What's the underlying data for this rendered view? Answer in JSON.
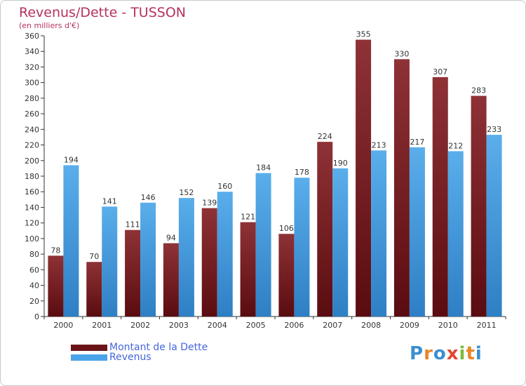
{
  "title": "Revenus/Dette - TUSSON",
  "subtitle": "(en milliers d'€)",
  "logo": {
    "text": "Proxiti",
    "colors": [
      "#3a8fd0",
      "#e8862a",
      "#3a8fd0",
      "#e04830",
      "#7cba3c",
      "#e8862a",
      "#3a8fd0"
    ]
  },
  "legend": [
    {
      "label": "Montant de la Dette",
      "color": "#6b1418"
    },
    {
      "label": "Revenus",
      "color": "#4aa3e8"
    }
  ],
  "chart_data": {
    "type": "bar",
    "title": "Revenus/Dette - TUSSON",
    "ylabel": "(en milliers d'€)",
    "categories": [
      "2000",
      "2001",
      "2002",
      "2003",
      "2004",
      "2005",
      "2006",
      "2007",
      "2008",
      "2009",
      "2010",
      "2011"
    ],
    "series": [
      {
        "name": "Montant de la Dette",
        "color": "#7a1e22",
        "values": [
          78,
          70,
          111,
          94,
          139,
          121,
          106,
          224,
          355,
          330,
          307,
          283
        ]
      },
      {
        "name": "Revenus",
        "color": "#4aa3e8",
        "values": [
          194,
          141,
          146,
          152,
          160,
          184,
          178,
          190,
          213,
          217,
          212,
          233
        ]
      }
    ],
    "ylim": [
      0,
      360
    ],
    "yticks": [
      0,
      20,
      40,
      60,
      80,
      100,
      120,
      140,
      160,
      180,
      200,
      220,
      240,
      260,
      280,
      300,
      320,
      340,
      360
    ],
    "grid": false,
    "legend_position": "bottom-left"
  }
}
